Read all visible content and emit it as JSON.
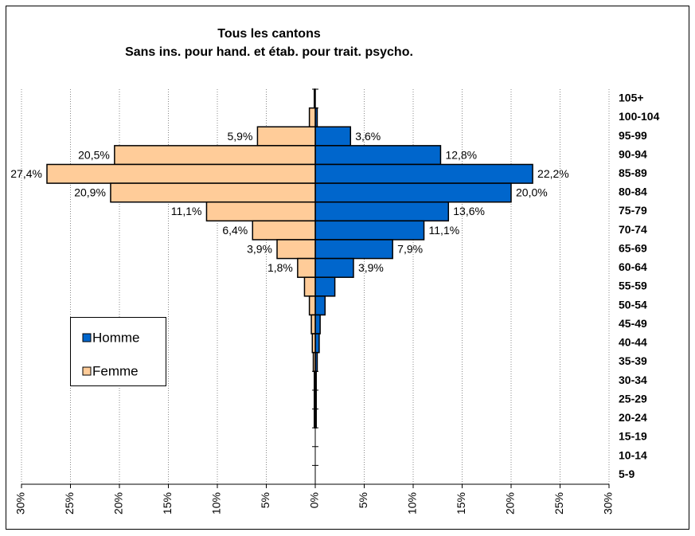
{
  "chart_data": {
    "type": "pyramid",
    "title": "Tous les cantons",
    "subtitle": "Sans ins. pour hand. et étab. pour trait. psycho.",
    "categories": [
      "105+",
      "100-104",
      "95-99",
      "90-94",
      "85-89",
      "80-84",
      "75-79",
      "70-74",
      "65-69",
      "60-64",
      "55-59",
      "50-54",
      "45-49",
      "40-44",
      "35-39",
      "30-34",
      "25-29",
      "20-24",
      "15-19",
      "10-14",
      "5-9"
    ],
    "series": [
      {
        "name": "Homme",
        "color": "#0066cc",
        "values": [
          0,
          0.2,
          3.6,
          12.8,
          22.2,
          20.0,
          13.6,
          11.1,
          7.9,
          3.9,
          2.0,
          1.0,
          0.5,
          0.4,
          0.2,
          0.1,
          0.1,
          0.1,
          0,
          0,
          0
        ],
        "value_labels": [
          null,
          null,
          "3,6%",
          "12,8%",
          "22,2%",
          "20,0%",
          "13,6%",
          "11,1%",
          "7,9%",
          "3,9%",
          null,
          null,
          null,
          null,
          null,
          null,
          null,
          null,
          null,
          null,
          null
        ]
      },
      {
        "name": "Femme",
        "color": "#ffcc99",
        "values": [
          0.1,
          0.6,
          5.9,
          20.5,
          27.4,
          20.9,
          11.1,
          6.4,
          3.9,
          1.8,
          1.1,
          0.6,
          0.4,
          0.3,
          0.2,
          0.1,
          0.1,
          0.1,
          0,
          0,
          0
        ],
        "value_labels": [
          null,
          null,
          "5,9%",
          "20,5%",
          "27,4%",
          "20,9%",
          "11,1%",
          "6,4%",
          "3,9%",
          "1,8%",
          null,
          null,
          null,
          null,
          null,
          null,
          null,
          null,
          null,
          null,
          null
        ]
      }
    ],
    "xlim": [
      -30,
      30
    ],
    "xticks": [
      {
        "value": -30,
        "label": "30%"
      },
      {
        "value": -25,
        "label": "25%"
      },
      {
        "value": -20,
        "label": "20%"
      },
      {
        "value": -15,
        "label": "15%"
      },
      {
        "value": -10,
        "label": "10%"
      },
      {
        "value": -5,
        "label": "5%"
      },
      {
        "value": 0,
        "label": "0%"
      },
      {
        "value": 5,
        "label": "5%"
      },
      {
        "value": 10,
        "label": "10%"
      },
      {
        "value": 15,
        "label": "15%"
      },
      {
        "value": 20,
        "label": "20%"
      },
      {
        "value": 25,
        "label": "25%"
      },
      {
        "value": 30,
        "label": "30%"
      }
    ],
    "grid": true
  }
}
